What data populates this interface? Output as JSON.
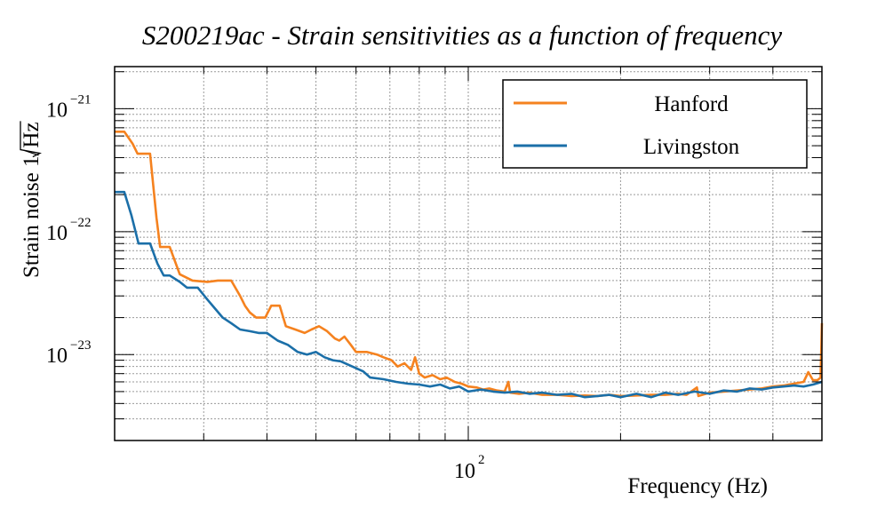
{
  "chart_data": {
    "type": "line",
    "title": "S200219ac - Strain sensitivities as a function of frequency",
    "xlabel": "Frequency (Hz)",
    "ylabel_text": "Strain noise 1/",
    "ylabel_radicand": "Hz",
    "x_scale": "log",
    "y_scale": "log",
    "xlim": [
      20,
      500
    ],
    "ylim": [
      2e-24,
      2.2e-21
    ],
    "grid": true,
    "legend_position": "top-right",
    "x_tick_base": "10",
    "x_tick_exp": "2",
    "y_tick_base": "10",
    "y_tick_exps": [
      "−21",
      "−22",
      "−23"
    ],
    "series": [
      {
        "name": "Hanford",
        "color": "#f5821f",
        "points": [
          [
            20,
            6.5e-22
          ],
          [
            20.9,
            6.5e-22
          ],
          [
            21.7,
            5.2e-22
          ],
          [
            22.2,
            4.3e-22
          ],
          [
            23.5,
            4.3e-22
          ],
          [
            24.2,
            1.3e-22
          ],
          [
            24.6,
            7.5e-23
          ],
          [
            25.7,
            7.5e-23
          ],
          [
            26.9,
            4.5e-23
          ],
          [
            28.5,
            4e-23
          ],
          [
            30.5,
            3.9e-23
          ],
          [
            32.0,
            4e-23
          ],
          [
            34.0,
            4e-23
          ],
          [
            35.4,
            3e-23
          ],
          [
            36.2,
            2.5e-23
          ],
          [
            37.0,
            2.2e-23
          ],
          [
            38.1,
            2e-23
          ],
          [
            39.7,
            2e-23
          ],
          [
            40.8,
            2.5e-23
          ],
          [
            42.4,
            2.5e-23
          ],
          [
            43.6,
            1.7e-23
          ],
          [
            45.5,
            1.6e-23
          ],
          [
            47.5,
            1.5e-23
          ],
          [
            49.0,
            1.6e-23
          ],
          [
            50.7,
            1.7e-23
          ],
          [
            52.6,
            1.55e-23
          ],
          [
            54.5,
            1.35e-23
          ],
          [
            55.6,
            1.3e-23
          ],
          [
            56.9,
            1.4e-23
          ],
          [
            58.6,
            1.2e-23
          ],
          [
            60.0,
            1.05e-23
          ],
          [
            63.0,
            1.05e-23
          ],
          [
            66.0,
            1e-23
          ],
          [
            68.0,
            9.5e-24
          ],
          [
            70.5,
            9e-24
          ],
          [
            72.5,
            8e-24
          ],
          [
            74.8,
            8.5e-24
          ],
          [
            77.1,
            7.5e-24
          ],
          [
            78.5,
            9.5e-24
          ],
          [
            80.0,
            7e-24
          ],
          [
            82.0,
            6.5e-24
          ],
          [
            85.0,
            6.8e-24
          ],
          [
            88.0,
            6.3e-24
          ],
          [
            90.6,
            6.5e-24
          ],
          [
            94.0,
            6e-24
          ],
          [
            97.0,
            5.8e-24
          ],
          [
            100.0,
            5.5e-24
          ],
          [
            104.0,
            5.4e-24
          ],
          [
            107.0,
            5.2e-24
          ],
          [
            110.0,
            5.3e-24
          ],
          [
            114.0,
            5.1e-24
          ],
          [
            118.0,
            5e-24
          ],
          [
            120.0,
            6e-24
          ],
          [
            121.0,
            4.9e-24
          ],
          [
            126.0,
            4.8e-24
          ],
          [
            132.0,
            4.9e-24
          ],
          [
            140.0,
            4.7e-24
          ],
          [
            150.0,
            4.7e-24
          ],
          [
            160.0,
            4.6e-24
          ],
          [
            170.0,
            4.65e-24
          ],
          [
            180.0,
            4.6e-24
          ],
          [
            190.0,
            4.7e-24
          ],
          [
            200.0,
            4.6e-24
          ],
          [
            215.0,
            4.65e-24
          ],
          [
            230.0,
            4.7e-24
          ],
          [
            245.0,
            4.7e-24
          ],
          [
            260.0,
            4.8e-24
          ],
          [
            270.0,
            4.7e-24
          ],
          [
            283.0,
            5.4e-24
          ],
          [
            285.0,
            4.6e-24
          ],
          [
            300.0,
            4.9e-24
          ],
          [
            320.0,
            5e-24
          ],
          [
            340.0,
            5.1e-24
          ],
          [
            360.0,
            5.2e-24
          ],
          [
            380.0,
            5.3e-24
          ],
          [
            400.0,
            5.5e-24
          ],
          [
            420.0,
            5.6e-24
          ],
          [
            440.0,
            5.8e-24
          ],
          [
            460.0,
            6e-24
          ],
          [
            470.0,
            7.2e-24
          ],
          [
            480.0,
            6.2e-24
          ],
          [
            490.0,
            6.2e-24
          ],
          [
            497.0,
            6.5e-24
          ],
          [
            500.0,
            1.8e-23
          ]
        ]
      },
      {
        "name": "Livingston",
        "color": "#1b6fa8",
        "points": [
          [
            20,
            2.1e-22
          ],
          [
            20.9,
            2.1e-22
          ],
          [
            21.6,
            1.35e-22
          ],
          [
            22.3,
            8e-23
          ],
          [
            23.5,
            8e-23
          ],
          [
            24.3,
            5.5e-23
          ],
          [
            25.0,
            4.4e-23
          ],
          [
            25.7,
            4.4e-23
          ],
          [
            26.9,
            3.9e-23
          ],
          [
            27.8,
            3.5e-23
          ],
          [
            29.2,
            3.5e-23
          ],
          [
            30.5,
            2.8e-23
          ],
          [
            31.5,
            2.4e-23
          ],
          [
            32.7,
            2e-23
          ],
          [
            34.0,
            1.8e-23
          ],
          [
            35.4,
            1.6e-23
          ],
          [
            37.0,
            1.55e-23
          ],
          [
            38.5,
            1.5e-23
          ],
          [
            40.0,
            1.5e-23
          ],
          [
            42.0,
            1.3e-23
          ],
          [
            44.0,
            1.2e-23
          ],
          [
            46.0,
            1.05e-23
          ],
          [
            48.0,
            1e-23
          ],
          [
            50.0,
            1.05e-23
          ],
          [
            52.0,
            9.5e-24
          ],
          [
            54.0,
            9e-24
          ],
          [
            56.0,
            8.8e-24
          ],
          [
            59.0,
            8e-24
          ],
          [
            62.0,
            7.3e-24
          ],
          [
            64.0,
            6.5e-24
          ],
          [
            68.0,
            6.3e-24
          ],
          [
            72.0,
            6e-24
          ],
          [
            76.0,
            5.8e-24
          ],
          [
            80.0,
            5.7e-24
          ],
          [
            84.0,
            5.5e-24
          ],
          [
            88.0,
            5.7e-24
          ],
          [
            92.0,
            5.3e-24
          ],
          [
            96.0,
            5.5e-24
          ],
          [
            100.0,
            5e-24
          ],
          [
            106.0,
            5.2e-24
          ],
          [
            112.0,
            5e-24
          ],
          [
            118.0,
            4.9e-24
          ],
          [
            125.0,
            5e-24
          ],
          [
            132.0,
            4.8e-24
          ],
          [
            140.0,
            4.9e-24
          ],
          [
            150.0,
            4.7e-24
          ],
          [
            160.0,
            4.8e-24
          ],
          [
            170.0,
            4.5e-24
          ],
          [
            180.0,
            4.6e-24
          ],
          [
            190.0,
            4.7e-24
          ],
          [
            200.0,
            4.5e-24
          ],
          [
            215.0,
            4.8e-24
          ],
          [
            230.0,
            4.5e-24
          ],
          [
            245.0,
            4.9e-24
          ],
          [
            260.0,
            4.7e-24
          ],
          [
            280.0,
            5e-24
          ],
          [
            300.0,
            4.8e-24
          ],
          [
            320.0,
            5.1e-24
          ],
          [
            340.0,
            5e-24
          ],
          [
            360.0,
            5.3e-24
          ],
          [
            380.0,
            5.2e-24
          ],
          [
            400.0,
            5.4e-24
          ],
          [
            420.0,
            5.5e-24
          ],
          [
            440.0,
            5.6e-24
          ],
          [
            460.0,
            5.5e-24
          ],
          [
            480.0,
            5.7e-24
          ],
          [
            500.0,
            6e-24
          ]
        ]
      }
    ]
  }
}
